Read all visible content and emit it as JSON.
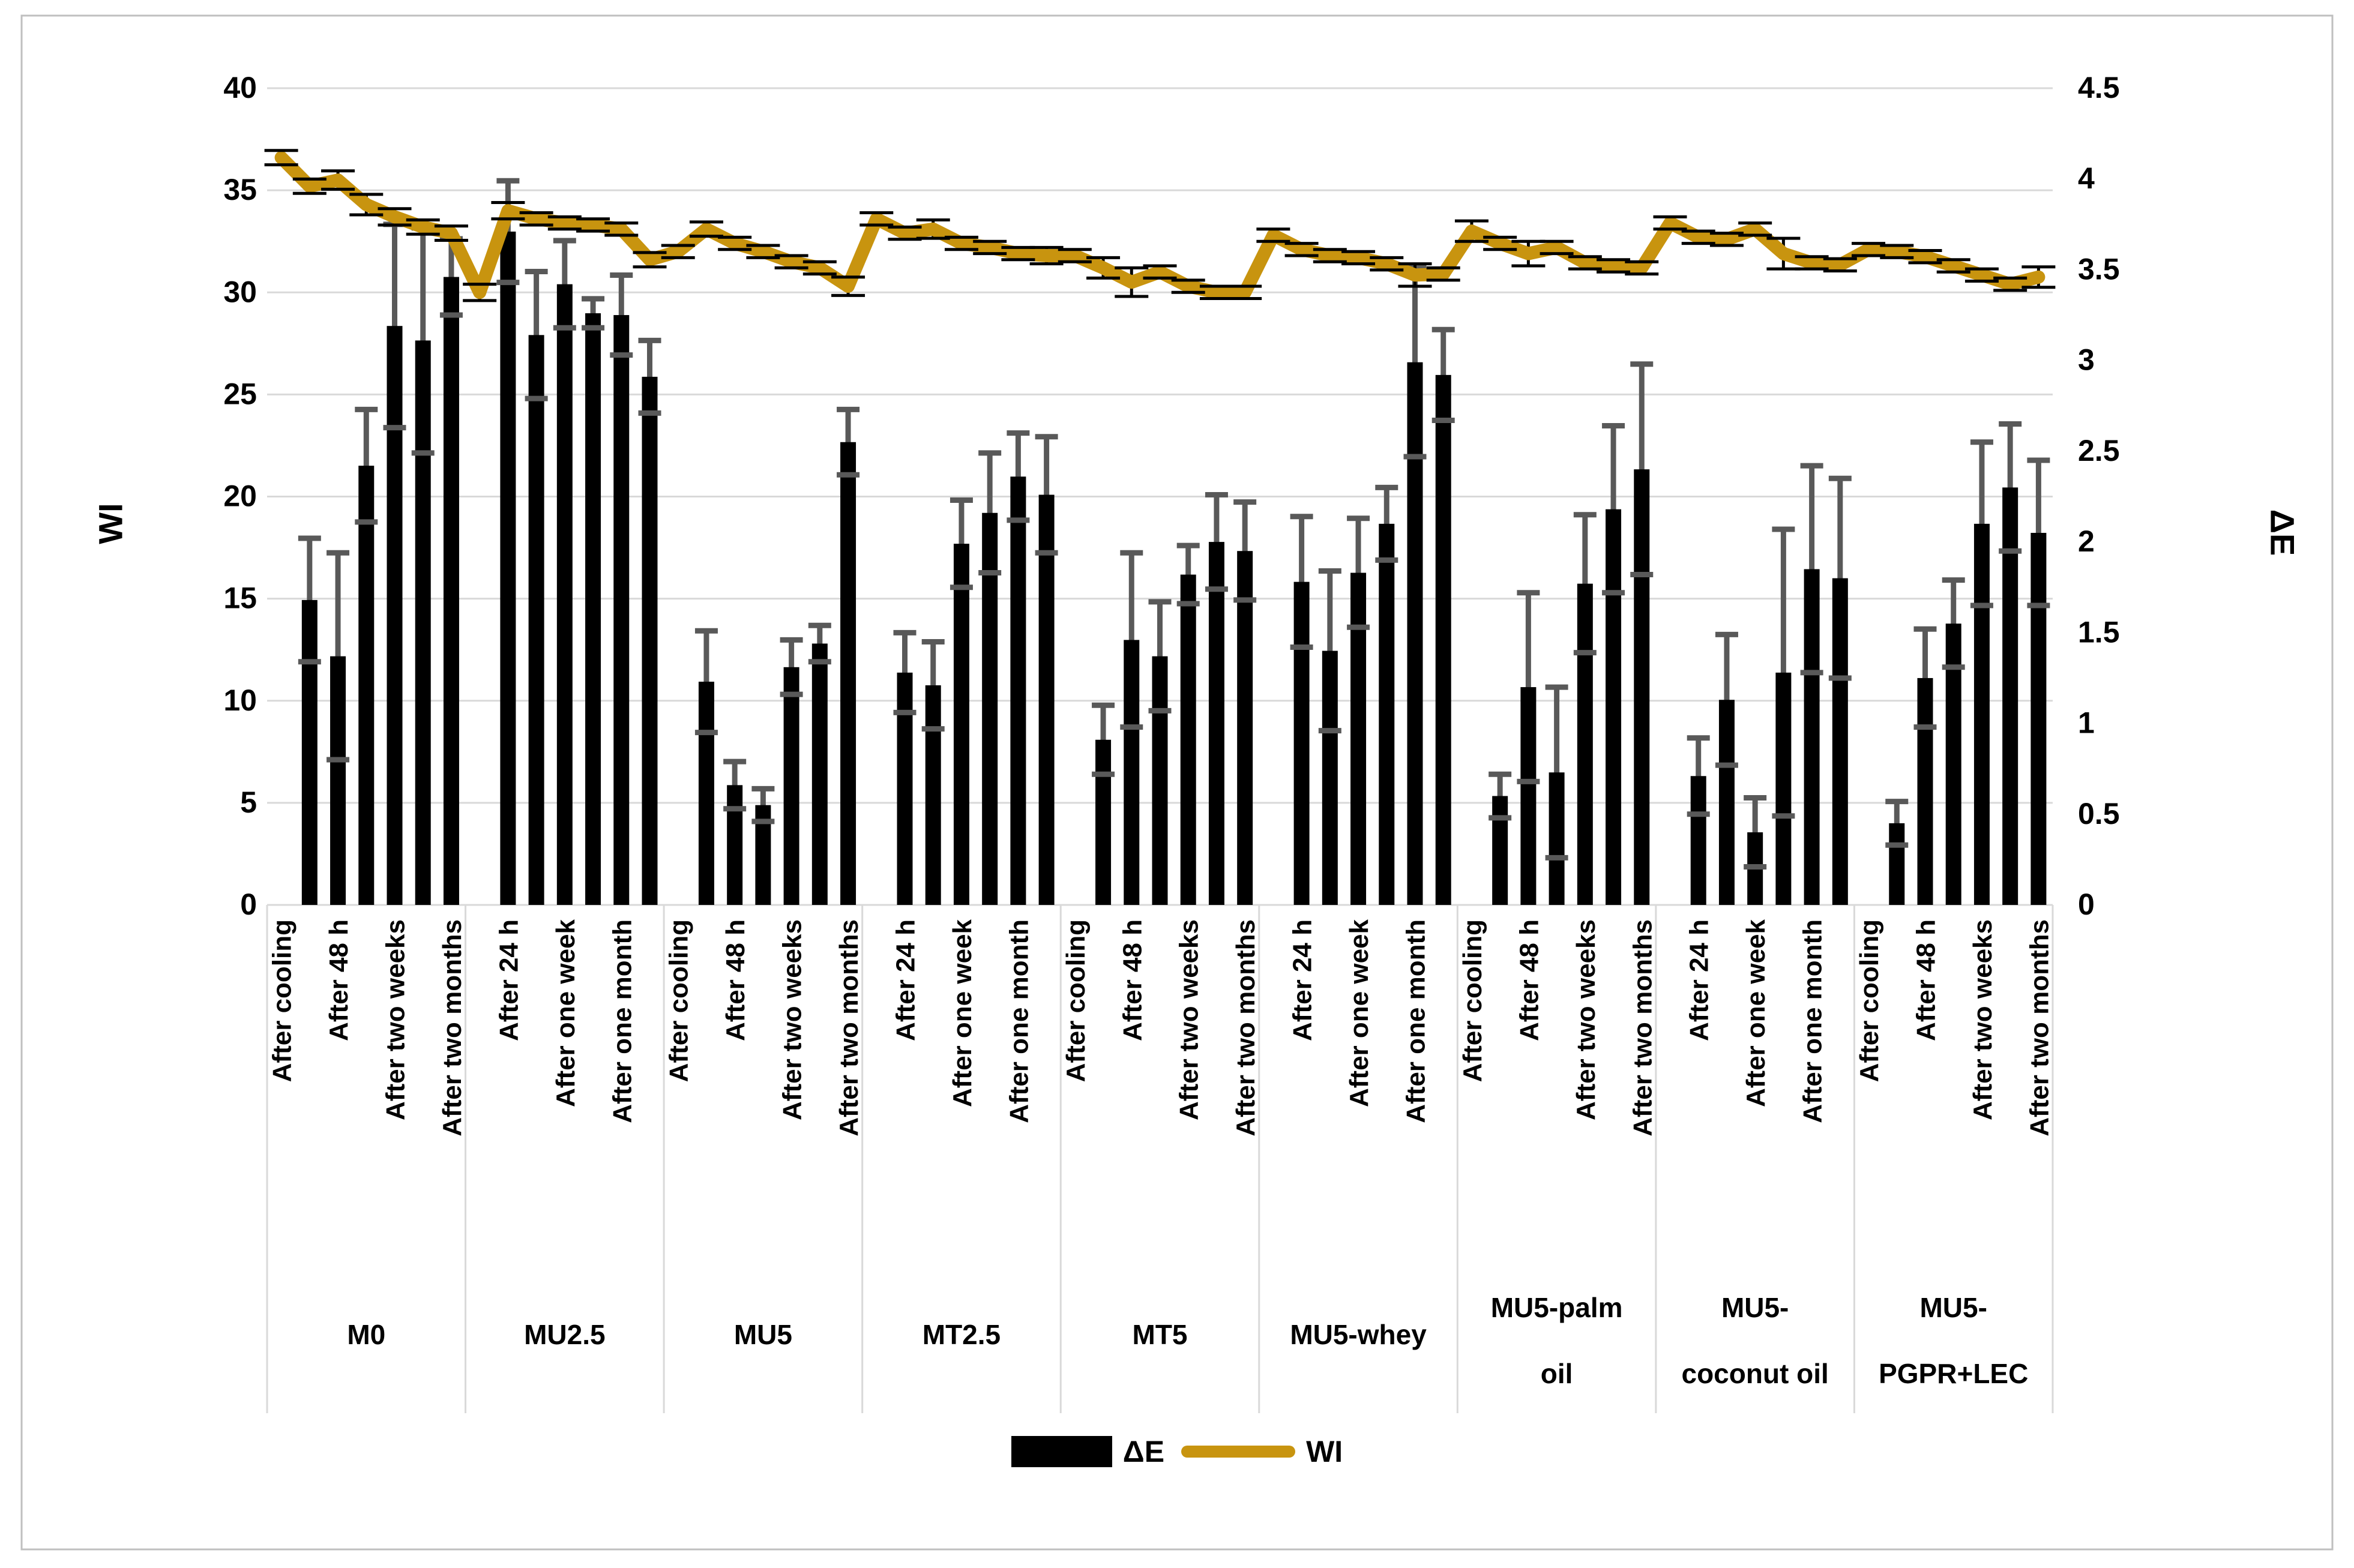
{
  "chart_data": {
    "type": "bar+line",
    "title": "",
    "left_axis": {
      "label": "WI",
      "min": 0,
      "max": 40,
      "step": 5,
      "ticks": [
        "0",
        "5",
        "10",
        "15",
        "20",
        "25",
        "30",
        "35",
        "40"
      ]
    },
    "right_axis": {
      "label": "ΔE",
      "min": 0,
      "max": 4.5,
      "step": 0.5,
      "ticks": [
        "0",
        "0.5",
        "1",
        "1.5",
        "2",
        "2.5",
        "3",
        "3.5",
        "4",
        "4.5"
      ]
    },
    "time_points": [
      "After cooling",
      "After 24 h",
      "After 48 h",
      "After one week",
      "After two weeks",
      "After one month",
      "After two months"
    ],
    "x_label_visibility": "every-other-category",
    "grid": "horizontal-on",
    "legend_position": "bottom-center",
    "legend": [
      {
        "label": "ΔE",
        "type": "bar",
        "color": "#000000"
      },
      {
        "label": "WI",
        "type": "line",
        "color": "#C8940F"
      }
    ],
    "series_notes": "WI line plotted on left axis for all 7 time points per group; ΔE bars on right axis exist only for time points 2-7 (no bar at 'After cooling'). Error bars on both series.",
    "groups": [
      {
        "label": "M0",
        "label_lines": [
          "M0"
        ],
        "WI": [
          36.6,
          35.2,
          35.5,
          34.3,
          33.7,
          33.2,
          32.9
        ],
        "WI_err": [
          0.35,
          0.35,
          0.45,
          0.5,
          0.4,
          0.35,
          0.35
        ],
        "dE": [
          null,
          1.68,
          1.37,
          2.42,
          3.19,
          3.11,
          3.46
        ],
        "dE_err": [
          null,
          0.34,
          0.57,
          0.31,
          0.56,
          0.62,
          0.21
        ]
      },
      {
        "label": "MU2.5",
        "label_lines": [
          "MU2.5"
        ],
        "WI": [
          30.0,
          34.0,
          33.6,
          33.4,
          33.3,
          33.1,
          31.6
        ],
        "WI_err": [
          0.4,
          0.4,
          0.3,
          0.3,
          0.3,
          0.3,
          0.35
        ],
        "dE": [
          null,
          3.71,
          3.14,
          3.42,
          3.26,
          3.25,
          2.91
        ],
        "dE_err": [
          null,
          0.28,
          0.35,
          0.24,
          0.08,
          0.22,
          0.2
        ]
      },
      {
        "label": "MU5",
        "label_lines": [
          "MU5"
        ],
        "WI": [
          32.0,
          33.1,
          32.4,
          32.0,
          31.5,
          31.2,
          30.3
        ],
        "WI_err": [
          0.3,
          0.35,
          0.3,
          0.3,
          0.3,
          0.3,
          0.45
        ],
        "dE": [
          null,
          1.23,
          0.66,
          0.55,
          1.31,
          1.44,
          2.55
        ],
        "dE_err": [
          null,
          0.28,
          0.13,
          0.09,
          0.15,
          0.1,
          0.18
        ]
      },
      {
        "label": "MT2.5",
        "label_lines": [
          "MT2.5"
        ],
        "WI": [
          33.6,
          32.9,
          33.1,
          32.4,
          32.2,
          31.9,
          31.8
        ],
        "WI_err": [
          0.3,
          0.3,
          0.45,
          0.3,
          0.3,
          0.3,
          0.4
        ],
        "dE": [
          null,
          1.28,
          1.21,
          1.99,
          2.16,
          2.36,
          2.26
        ],
        "dE_err": [
          null,
          0.22,
          0.24,
          0.24,
          0.33,
          0.24,
          0.32
        ]
      },
      {
        "label": "MT5",
        "label_lines": [
          "MT5"
        ],
        "WI": [
          31.8,
          31.2,
          30.5,
          31.0,
          30.3,
          30.0,
          30.0
        ],
        "WI_err": [
          0.3,
          0.5,
          0.7,
          0.3,
          0.3,
          0.3,
          0.3
        ],
        "dE": [
          null,
          0.91,
          1.46,
          1.37,
          1.82,
          2.0,
          1.95
        ],
        "dE_err": [
          null,
          0.19,
          0.48,
          0.3,
          0.16,
          0.26,
          0.27
        ]
      },
      {
        "label": "MU5-whey",
        "label_lines": [
          "MU5-whey"
        ],
        "WI": [
          32.8,
          32.1,
          31.8,
          31.7,
          31.4,
          30.85,
          30.9
        ],
        "WI_err": [
          0.3,
          0.3,
          0.3,
          0.3,
          0.3,
          0.55,
          0.3
        ],
        "dE": [
          null,
          1.78,
          1.4,
          1.83,
          2.1,
          2.99,
          2.92
        ],
        "dE_err": [
          null,
          0.36,
          0.44,
          0.3,
          0.2,
          0.52,
          0.25
        ]
      },
      {
        "label": "MU5-palm oil",
        "label_lines": [
          "MU5-palm",
          "oil"
        ],
        "WI": [
          33.0,
          32.4,
          31.9,
          32.2,
          31.45,
          31.3,
          31.2
        ],
        "WI_err": [
          0.5,
          0.3,
          0.6,
          0.3,
          0.3,
          0.3,
          0.3
        ],
        "dE": [
          null,
          0.6,
          1.2,
          0.73,
          1.77,
          2.18,
          2.4
        ],
        "dE_err": [
          null,
          0.12,
          0.52,
          0.47,
          0.38,
          0.46,
          0.58
        ]
      },
      {
        "label": "MU5-coconut oil",
        "label_lines": [
          "MU5-",
          "coconut oil"
        ],
        "WI": [
          33.4,
          32.7,
          32.6,
          33.1,
          31.9,
          31.45,
          31.35
        ],
        "WI_err": [
          0.3,
          0.3,
          0.3,
          0.3,
          0.75,
          0.3,
          0.3
        ],
        "dE": [
          null,
          0.71,
          1.13,
          0.4,
          1.28,
          1.85,
          1.8
        ],
        "dE_err": [
          null,
          0.21,
          0.36,
          0.19,
          0.79,
          0.57,
          0.55
        ]
      },
      {
        "label": "MU5-PGPR+LEC",
        "label_lines": [
          "MU5-",
          "PGPR+LEC"
        ],
        "WI": [
          32.1,
          32.0,
          31.75,
          31.3,
          30.85,
          30.4,
          30.75
        ],
        "WI_err": [
          0.3,
          0.3,
          0.3,
          0.3,
          0.3,
          0.3,
          0.5
        ],
        "dE": [
          null,
          0.45,
          1.25,
          1.55,
          2.1,
          2.3,
          2.05
        ],
        "dE_err": [
          null,
          0.12,
          0.27,
          0.24,
          0.45,
          0.35,
          0.4
        ]
      }
    ],
    "colors": {
      "bar": "#000000",
      "line": "#C8940F",
      "bar_error": "#595959",
      "line_error": "#000000",
      "grid": "#D9D9D9",
      "separator": "#D9D9D9",
      "frame": "#BFBFBF",
      "background": "#FFFFFF",
      "text": "#000000"
    }
  }
}
